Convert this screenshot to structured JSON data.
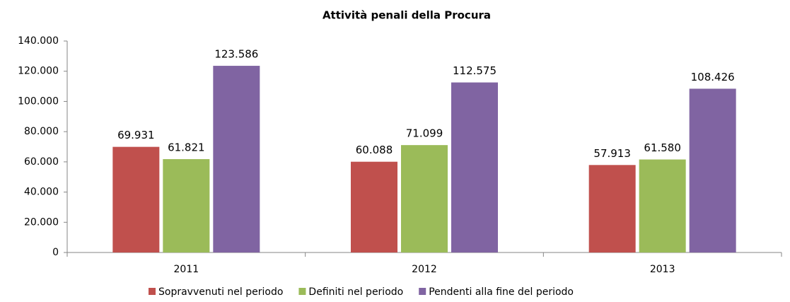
{
  "chart_data": {
    "type": "bar",
    "title": "Attività  penali della Procura",
    "categories": [
      "2011",
      "2012",
      "2013"
    ],
    "series": [
      {
        "name": "Sopravvenuti nel periodo",
        "color": "#c0504d",
        "values": [
          69931,
          60088,
          57913
        ],
        "value_labels": [
          "69.931",
          "60.088",
          "57.913"
        ]
      },
      {
        "name": "Definiti nel periodo",
        "color": "#9bbb59",
        "values": [
          61821,
          71099,
          61580
        ],
        "value_labels": [
          "61.821",
          "71.099",
          "61.580"
        ]
      },
      {
        "name": "Pendenti alla fine del periodo",
        "color": "#8064a2",
        "values": [
          123586,
          112575,
          108426
        ],
        "value_labels": [
          "123.586",
          "112.575",
          "108.426"
        ]
      }
    ],
    "ylim": [
      0,
      140000
    ],
    "yticks": [
      0,
      {
        "value": 20000,
        "label": "20.000"
      },
      {
        "value": 40000,
        "label": "40.000"
      },
      {
        "value": 60000,
        "label": "60.000"
      },
      {
        "value": 80000,
        "label": "80.000"
      },
      {
        "value": 100000,
        "label": "100.000"
      },
      {
        "value": 120000,
        "label": "120.000"
      },
      {
        "value": 140000,
        "label": "140.000"
      }
    ],
    "legend": "bottom"
  }
}
